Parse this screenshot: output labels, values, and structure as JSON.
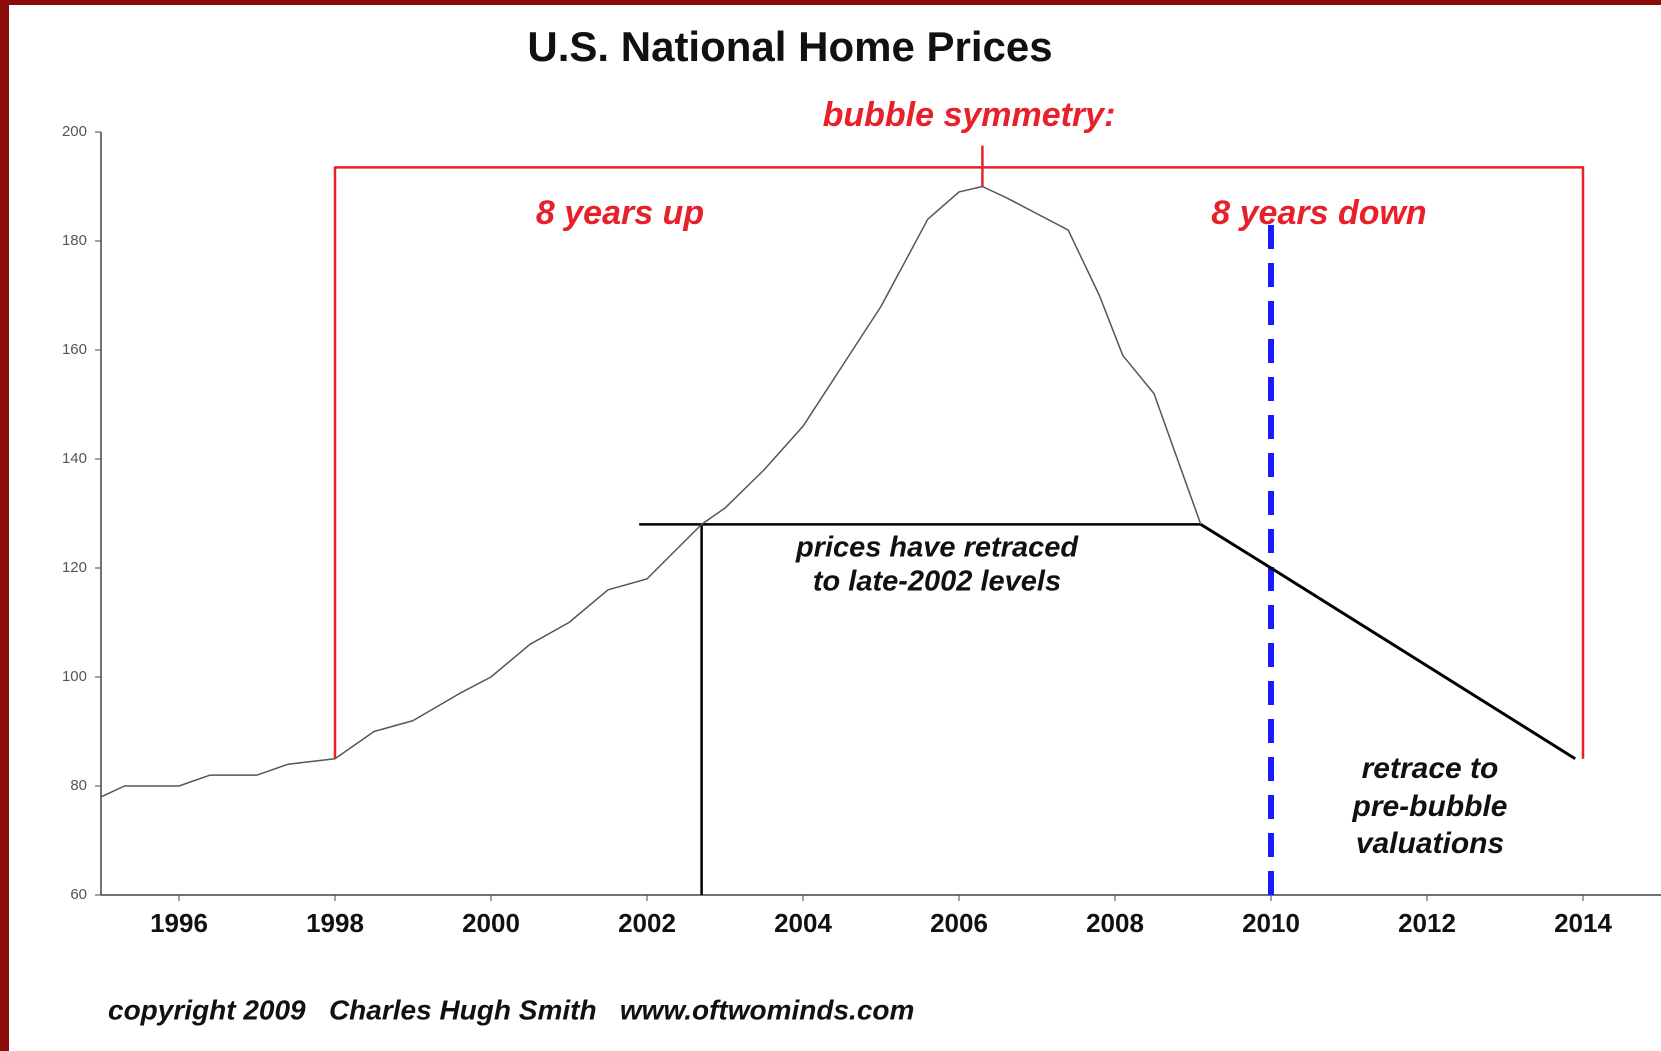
{
  "chart_data": {
    "type": "line",
    "title": "U.S. National Home Prices",
    "x": [
      1995,
      1995.3,
      1996,
      1996.4,
      1997,
      1997.4,
      1998,
      1998.5,
      1999,
      1999.6,
      2000,
      2000.5,
      2001,
      2001.5,
      2002,
      2002.7,
      2003,
      2003.5,
      2004,
      2004.5,
      2005,
      2005.3,
      2005.6,
      2006,
      2006.3,
      2006.6,
      2007,
      2007.4,
      2007.8,
      2008.1,
      2008.5,
      2008.8,
      2009.1
    ],
    "series": [
      {
        "color": "#555555",
        "values": [
          78,
          80,
          80,
          82,
          82,
          84,
          85,
          90,
          92,
          97,
          100,
          106,
          110,
          116,
          118,
          128,
          131,
          138,
          146,
          157,
          168,
          176,
          184,
          189,
          190,
          188,
          185,
          182,
          170,
          159,
          152,
          140,
          128
        ]
      }
    ],
    "projection": {
      "color": "#000000",
      "x": [
        2009.1,
        2010,
        2013.9
      ],
      "values": [
        128,
        120,
        85
      ]
    },
    "reference_lines": [
      {
        "color": "#000000",
        "dashed": false,
        "x": [
          2001.9,
          2009.1
        ],
        "y": [
          128,
          128
        ]
      },
      {
        "color": "#000000",
        "dashed": false,
        "x": [
          2002.7,
          2002.7
        ],
        "y": [
          60,
          128
        ]
      },
      {
        "color": "#1a1aff",
        "dashed": true,
        "x": [
          2010,
          2010
        ],
        "y": [
          60,
          184
        ]
      },
      {
        "color": "#e8202a",
        "dashed": false,
        "x": [
          1998,
          1998,
          2014,
          2014
        ],
        "y": [
          85,
          193.5,
          193.5,
          85
        ]
      },
      {
        "color": "#e8202a",
        "dashed": false,
        "x": [
          2006.3,
          2006.3
        ],
        "y": [
          190,
          197.5
        ]
      }
    ],
    "annotations": {
      "headline": "bubble symmetry:",
      "up": "8 years up",
      "down": "8 years down",
      "retraced": [
        "prices have retraced",
        "to late-2002 levels"
      ],
      "retrace": [
        "retrace to",
        "pre-bubble",
        "valuations"
      ]
    },
    "footer": "copyright 2009   Charles Hugh Smith   www.oftwominds.com",
    "xlim": [
      1995,
      2015
    ],
    "xticks": [
      1996,
      1998,
      2000,
      2002,
      2004,
      2006,
      2008,
      2010,
      2012,
      2014
    ],
    "ylim": [
      60,
      200
    ],
    "yticks": [
      60,
      80,
      100,
      120,
      140,
      160,
      180,
      200
    ]
  }
}
